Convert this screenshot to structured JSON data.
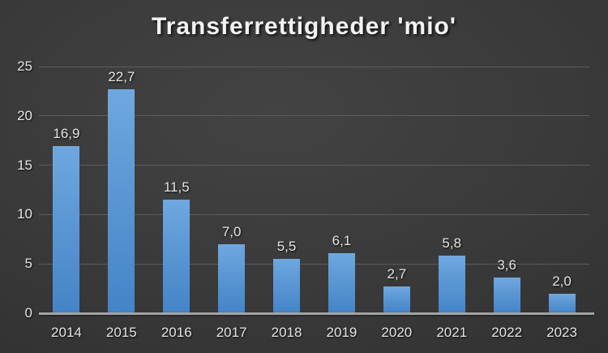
{
  "title": "Transferrettigheder 'mio'",
  "chart_data": {
    "type": "bar",
    "title": "Transferrettigheder 'mio'",
    "categories": [
      "2014",
      "2015",
      "2016",
      "2017",
      "2018",
      "2019",
      "2020",
      "2021",
      "2022",
      "2023"
    ],
    "values": [
      16.9,
      22.7,
      11.5,
      7.0,
      5.5,
      6.1,
      2.7,
      5.8,
      3.6,
      2.0
    ],
    "value_labels": [
      "16,9",
      "22,7",
      "11,5",
      "7,0",
      "5,5",
      "6,1",
      "2,7",
      "5,8",
      "3,6",
      "2,0"
    ],
    "xlabel": "",
    "ylabel": "",
    "ylim": [
      0,
      25
    ],
    "yticks": [
      0,
      5,
      10,
      15,
      20,
      25
    ],
    "grid": true,
    "legend": false,
    "decimal_separator": ",",
    "colors": {
      "bar_top": "#6fa8e0",
      "bar_bottom": "#4484c7",
      "background_center": "#434343",
      "background_edge": "#262626",
      "gridline": "#5d5d5d",
      "axis_line": "#a3a3a3",
      "label_text": "#e2e2e2",
      "title_text": "#f2f2f2"
    }
  }
}
